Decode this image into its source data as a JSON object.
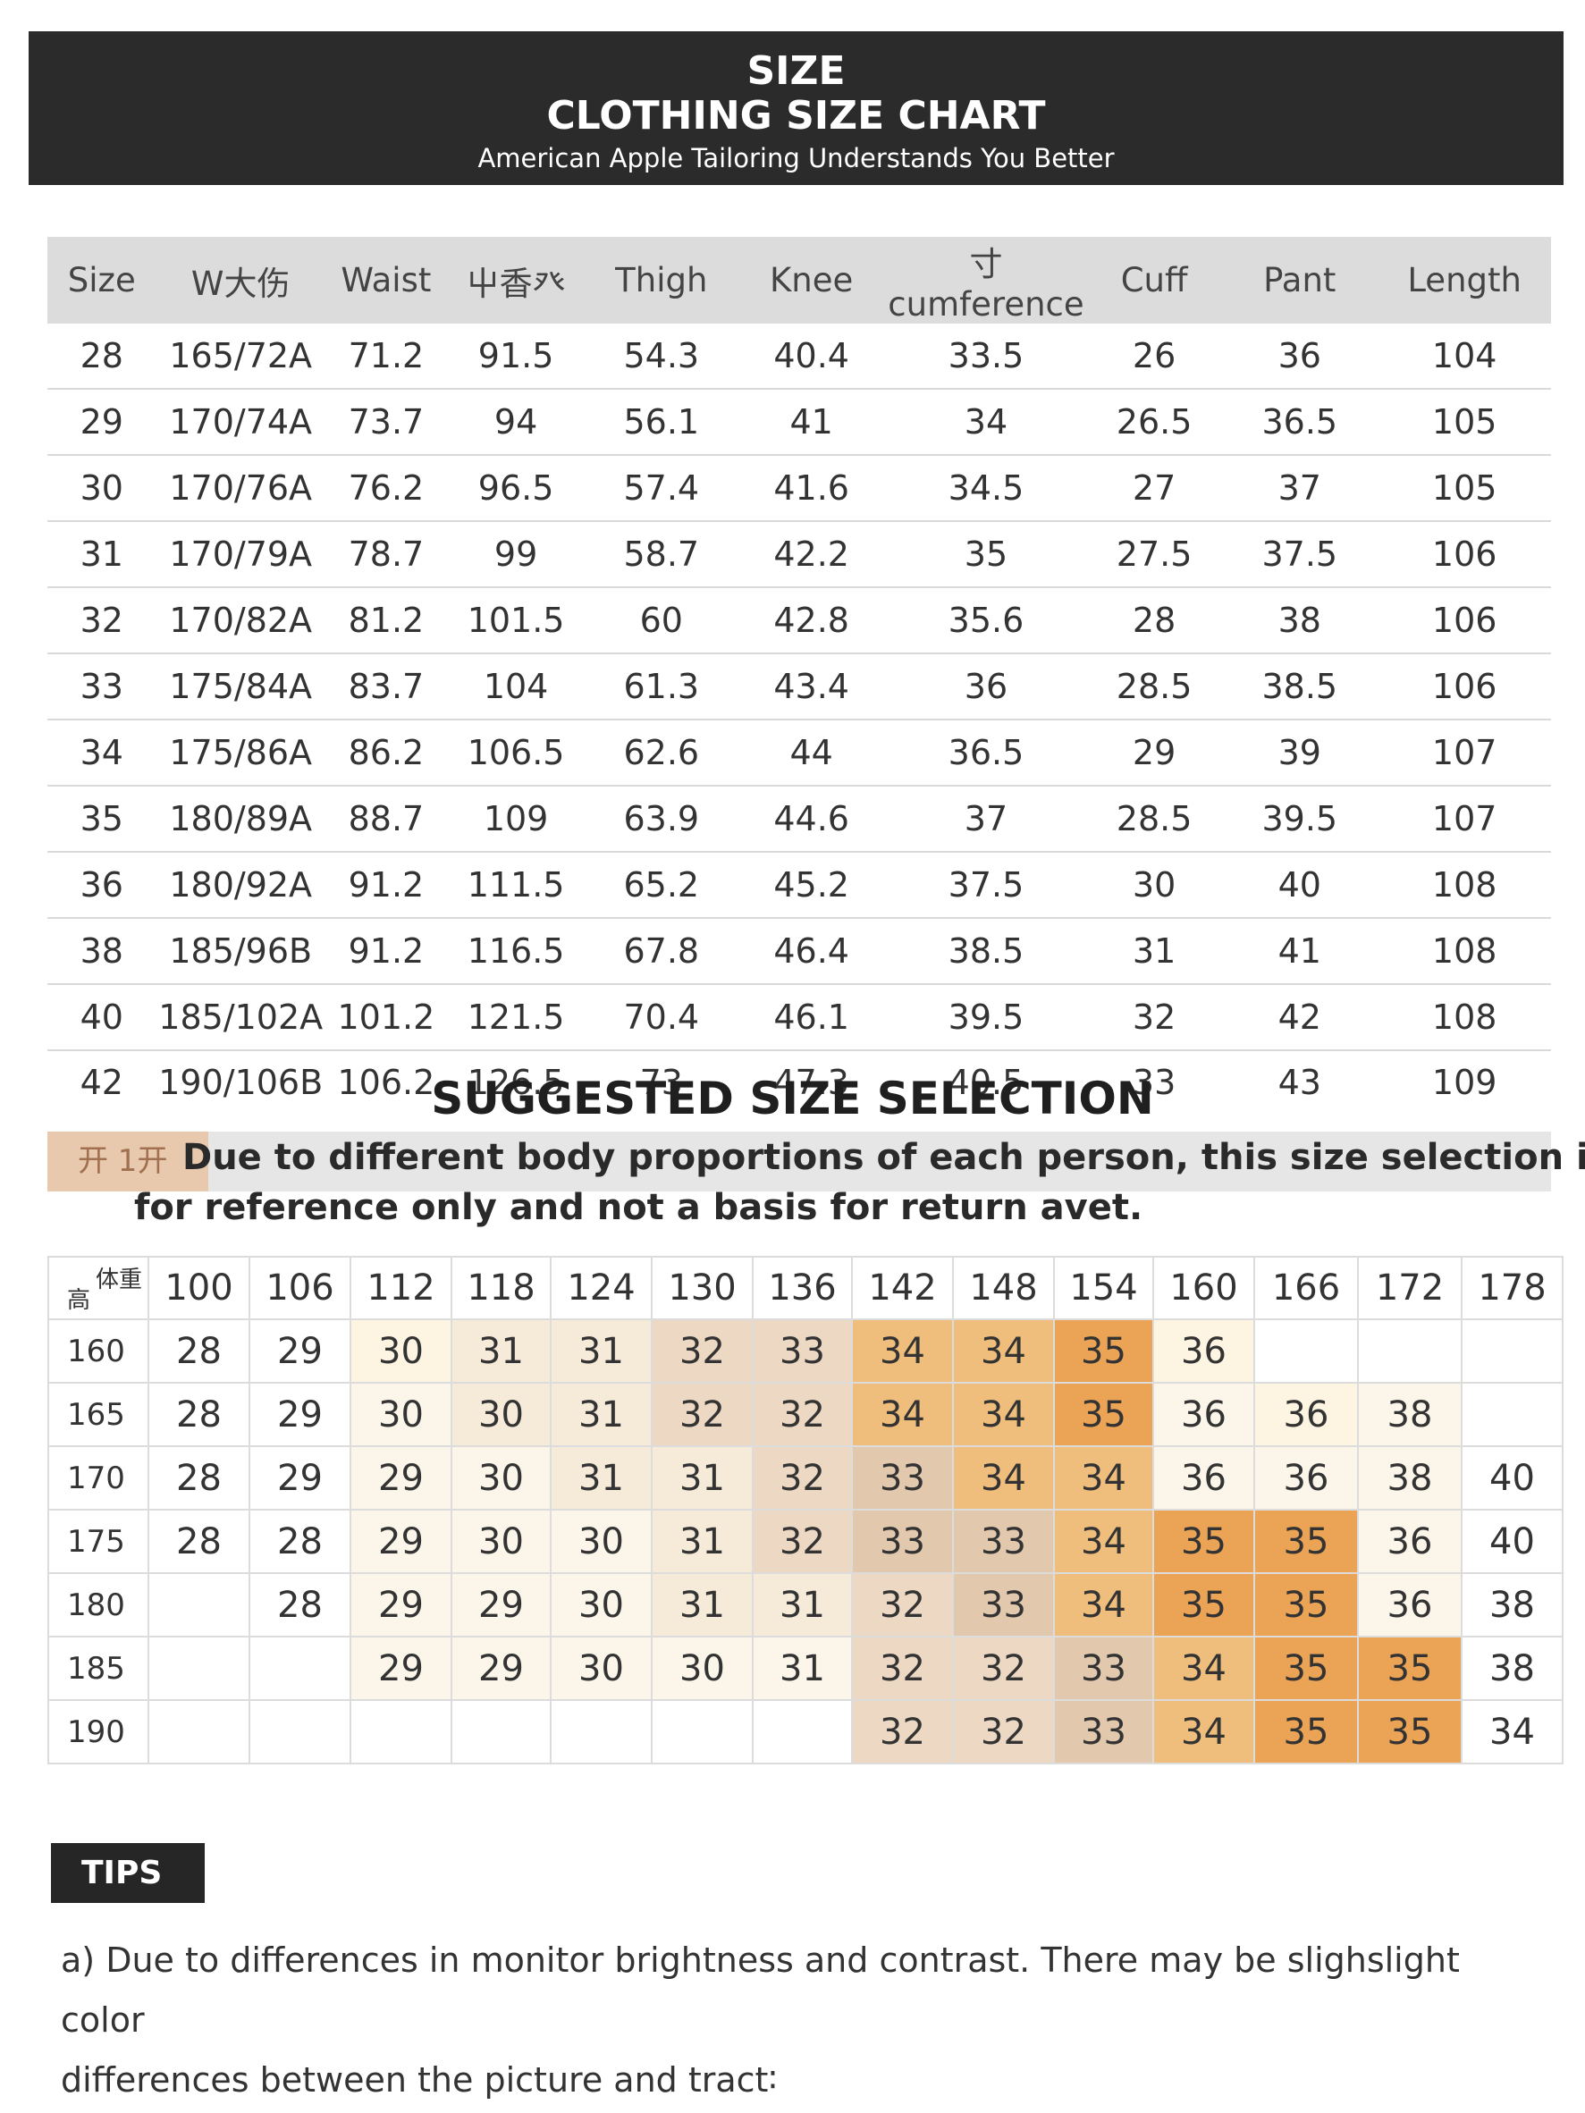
{
  "header": {
    "line1": "SIZE",
    "line2": "CLOTHING SIZE CHART",
    "subtitle": "American Apple Tailoring Understands You Better"
  },
  "size_table": {
    "headers": [
      "Size",
      "W⼤伤",
      "Waist",
      "⼬⾹⽨",
      "Thigh",
      "Knee",
      "⼨cumference",
      "Cuff",
      "Pant",
      "Length"
    ],
    "rows": [
      [
        "28",
        "165/72A",
        "71.2",
        "91.5",
        "54.3",
        "40.4",
        "33.5",
        "26",
        "36",
        "104"
      ],
      [
        "29",
        "170/74A",
        "73.7",
        "94",
        "56.1",
        "41",
        "34",
        "26.5",
        "36.5",
        "105"
      ],
      [
        "30",
        "170/76A",
        "76.2",
        "96.5",
        "57.4",
        "41.6",
        "34.5",
        "27",
        "37",
        "105"
      ],
      [
        "31",
        "170/79A",
        "78.7",
        "99",
        "58.7",
        "42.2",
        "35",
        "27.5",
        "37.5",
        "106"
      ],
      [
        "32",
        "170/82A",
        "81.2",
        "101.5",
        "60",
        "42.8",
        "35.6",
        "28",
        "38",
        "106"
      ],
      [
        "33",
        "175/84A",
        "83.7",
        "104",
        "61.3",
        "43.4",
        "36",
        "28.5",
        "38.5",
        "106"
      ],
      [
        "34",
        "175/86A",
        "86.2",
        "106.5",
        "62.6",
        "44",
        "36.5",
        "29",
        "39",
        "107"
      ],
      [
        "35",
        "180/89A",
        "88.7",
        "109",
        "63.9",
        "44.6",
        "37",
        "28.5",
        "39.5",
        "107"
      ],
      [
        "36",
        "180/92A",
        "91.2",
        "111.5",
        "65.2",
        "45.2",
        "37.5",
        "30",
        "40",
        "108"
      ],
      [
        "38",
        "185/96B",
        "91.2",
        "116.5",
        "67.8",
        "46.4",
        "38.5",
        "31",
        "41",
        "108"
      ],
      [
        "40",
        "185/102A",
        "101.2",
        "121.5",
        "70.4",
        "46.1",
        "39.5",
        "32",
        "42",
        "108"
      ],
      [
        "42",
        "190/106B",
        "106.2",
        "126.5",
        "73",
        "47.3",
        "40.5",
        "33",
        "43",
        "109"
      ]
    ]
  },
  "suggested": {
    "title": "SUGGESTED SIZE SELECTION",
    "tag": "开 1开",
    "note_line1": "Due to different body proportions of each person, this size selection is",
    "note_line2": "for reference only and not a basis for return avet."
  },
  "grid": {
    "corner_weight": "体重",
    "corner_height": "高",
    "weights": [
      "100",
      "106",
      "112",
      "118",
      "124",
      "130",
      "136",
      "142",
      "148",
      "154",
      "160",
      "166",
      "172",
      "178"
    ],
    "rows": [
      {
        "height": "160",
        "cells": [
          [
            "28",
            0
          ],
          [
            "29",
            0
          ],
          [
            "30",
            7
          ],
          [
            "31",
            2
          ],
          [
            "31",
            2
          ],
          [
            "32",
            3
          ],
          [
            "33",
            3
          ],
          [
            "34",
            5
          ],
          [
            "34",
            5
          ],
          [
            "35",
            6
          ],
          [
            "36",
            7
          ],
          [
            "",
            0
          ],
          [
            "",
            0
          ],
          [
            "",
            0
          ]
        ]
      },
      {
        "height": "165",
        "cells": [
          [
            "28",
            0
          ],
          [
            "29",
            0
          ],
          [
            "30",
            1
          ],
          [
            "30",
            2
          ],
          [
            "31",
            2
          ],
          [
            "32",
            3
          ],
          [
            "32",
            3
          ],
          [
            "34",
            5
          ],
          [
            "34",
            5
          ],
          [
            "35",
            6
          ],
          [
            "36",
            1
          ],
          [
            "36",
            7
          ],
          [
            "38",
            1
          ],
          [
            "",
            0
          ]
        ]
      },
      {
        "height": "170",
        "cells": [
          [
            "28",
            0
          ],
          [
            "29",
            0
          ],
          [
            "29",
            1
          ],
          [
            "30",
            1
          ],
          [
            "31",
            2
          ],
          [
            "31",
            2
          ],
          [
            "32",
            3
          ],
          [
            "33",
            4
          ],
          [
            "34",
            5
          ],
          [
            "34",
            5
          ],
          [
            "36",
            1
          ],
          [
            "36",
            1
          ],
          [
            "38",
            1
          ],
          [
            "40",
            0
          ]
        ]
      },
      {
        "height": "175",
        "cells": [
          [
            "28",
            0
          ],
          [
            "28",
            0
          ],
          [
            "29",
            1
          ],
          [
            "30",
            1
          ],
          [
            "30",
            1
          ],
          [
            "31",
            2
          ],
          [
            "32",
            3
          ],
          [
            "33",
            4
          ],
          [
            "33",
            4
          ],
          [
            "34",
            5
          ],
          [
            "35",
            6
          ],
          [
            "35",
            6
          ],
          [
            "36",
            1
          ],
          [
            "40",
            0
          ]
        ]
      },
      {
        "height": "180",
        "cells": [
          [
            "",
            0
          ],
          [
            "28",
            0
          ],
          [
            "29",
            1
          ],
          [
            "29",
            1
          ],
          [
            "30",
            1
          ],
          [
            "31",
            2
          ],
          [
            "31",
            2
          ],
          [
            "32",
            3
          ],
          [
            "33",
            4
          ],
          [
            "34",
            5
          ],
          [
            "35",
            6
          ],
          [
            "35",
            6
          ],
          [
            "36",
            1
          ],
          [
            "38",
            0
          ]
        ]
      },
      {
        "height": "185",
        "cells": [
          [
            "",
            0
          ],
          [
            "",
            0
          ],
          [
            "29",
            1
          ],
          [
            "29",
            1
          ],
          [
            "30",
            1
          ],
          [
            "30",
            1
          ],
          [
            "31",
            1
          ],
          [
            "32",
            3
          ],
          [
            "32",
            3
          ],
          [
            "33",
            4
          ],
          [
            "34",
            5
          ],
          [
            "35",
            6
          ],
          [
            "35",
            6
          ],
          [
            "38",
            0
          ]
        ]
      },
      {
        "height": "190",
        "cells": [
          [
            "",
            0
          ],
          [
            "",
            0
          ],
          [
            "",
            0
          ],
          [
            "",
            0
          ],
          [
            "",
            0
          ],
          [
            "",
            0
          ],
          [
            "",
            0
          ],
          [
            "32",
            3
          ],
          [
            "32",
            3
          ],
          [
            "33",
            4
          ],
          [
            "34",
            5
          ],
          [
            "35",
            6
          ],
          [
            "35",
            6
          ],
          [
            "34",
            0
          ]
        ]
      }
    ]
  },
  "tips": {
    "label": "TIPS",
    "line1": "a) Due to differences in monitor brightness and contrast. There may be slighslight color",
    "line2": "differences between the picture and tract∶"
  },
  "colors": {
    "banner": "#2b2b2b",
    "header_row": "#dcdcdc",
    "heat_light": "#fcf6ea",
    "heat_mid": "#ecd8c3",
    "heat_orange": "#f0be7c",
    "heat_dark_orange": "#eba355"
  }
}
